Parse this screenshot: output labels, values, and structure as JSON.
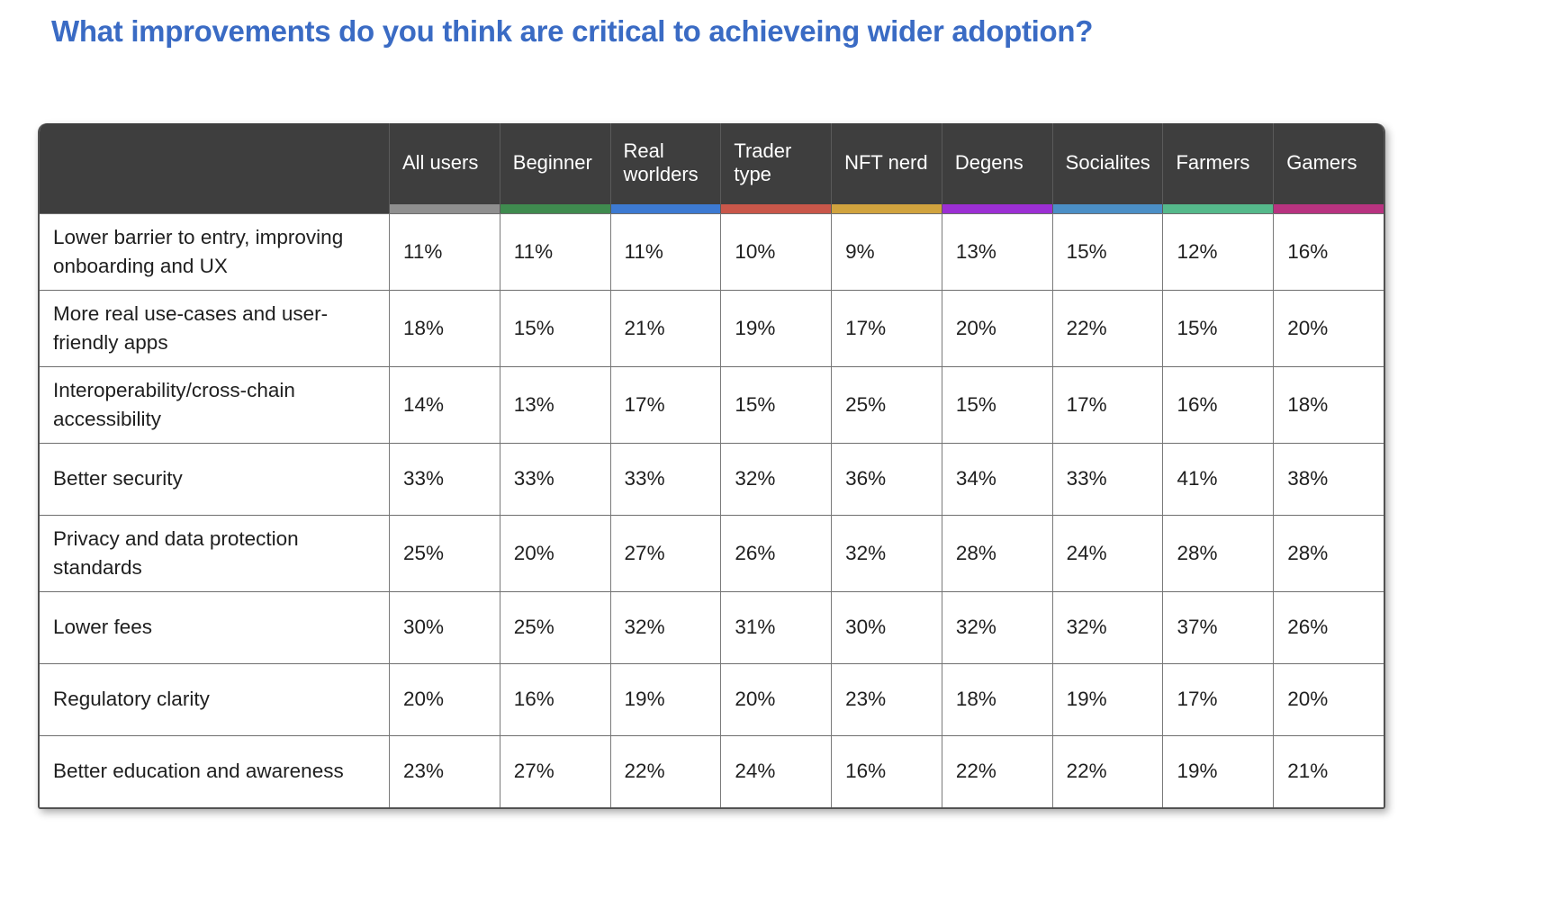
{
  "title": {
    "text": "What improvements do you think are critical to achieveing wider adoption?",
    "color": "#3a6bc4"
  },
  "table": {
    "columns": [
      {
        "label": "All users",
        "color": "#8f8f8f"
      },
      {
        "label": "Beginner",
        "color": "#3f8b4f"
      },
      {
        "label": "Real worlders",
        "color": "#3d7ad2"
      },
      {
        "label": "Trader type",
        "color": "#c9574a"
      },
      {
        "label": "NFT nerd",
        "color": "#d1a33e"
      },
      {
        "label": "Degens",
        "color": "#9c2fd4"
      },
      {
        "label": "Socialites",
        "color": "#4b8fc6"
      },
      {
        "label": "Farmers",
        "color": "#55b98b"
      },
      {
        "label": "Gamers",
        "color": "#b83380"
      }
    ],
    "rows": [
      {
        "label": "Lower barrier to entry, improving onboarding and UX",
        "values": [
          "11%",
          "11%",
          "11%",
          "10%",
          "9%",
          "13%",
          "15%",
          "12%",
          "16%"
        ]
      },
      {
        "label": "More real use-cases and user-friendly apps",
        "values": [
          "18%",
          "15%",
          "21%",
          "19%",
          "17%",
          "20%",
          "22%",
          "15%",
          "20%"
        ]
      },
      {
        "label": "Interoperability/cross-chain accessibility",
        "values": [
          "14%",
          "13%",
          "17%",
          "15%",
          "25%",
          "15%",
          "17%",
          "16%",
          "18%"
        ]
      },
      {
        "label": "Better security",
        "values": [
          "33%",
          "33%",
          "33%",
          "32%",
          "36%",
          "34%",
          "33%",
          "41%",
          "38%"
        ]
      },
      {
        "label": "Privacy and data protection standards",
        "values": [
          "25%",
          "20%",
          "27%",
          "26%",
          "32%",
          "28%",
          "24%",
          "28%",
          "28%"
        ]
      },
      {
        "label": "Lower fees",
        "values": [
          "30%",
          "25%",
          "32%",
          "31%",
          "30%",
          "32%",
          "32%",
          "37%",
          "26%"
        ]
      },
      {
        "label": "Regulatory clarity",
        "values": [
          "20%",
          "16%",
          "19%",
          "20%",
          "23%",
          "18%",
          "19%",
          "17%",
          "20%"
        ]
      },
      {
        "label": "Better education and awareness",
        "values": [
          "23%",
          "27%",
          "22%",
          "24%",
          "16%",
          "22%",
          "22%",
          "19%",
          "21%"
        ]
      }
    ]
  },
  "chart_data": {
    "type": "table",
    "title": "What improvements do you think are critical to achieveing wider adoption?",
    "categories": [
      "All users",
      "Beginner",
      "Real worlders",
      "Trader type",
      "NFT nerd",
      "Degens",
      "Socialites",
      "Farmers",
      "Gamers"
    ],
    "value_unit": "%",
    "series": [
      {
        "name": "Lower barrier to entry, improving onboarding and UX",
        "values": [
          11,
          11,
          11,
          10,
          9,
          13,
          15,
          12,
          16
        ]
      },
      {
        "name": "More real use-cases and user-friendly apps",
        "values": [
          18,
          15,
          21,
          19,
          17,
          20,
          22,
          15,
          20
        ]
      },
      {
        "name": "Interoperability/cross-chain accessibility",
        "values": [
          14,
          13,
          17,
          15,
          25,
          15,
          17,
          16,
          18
        ]
      },
      {
        "name": "Better security",
        "values": [
          33,
          33,
          33,
          32,
          36,
          34,
          33,
          41,
          38
        ]
      },
      {
        "name": "Privacy and data protection standards",
        "values": [
          25,
          20,
          27,
          26,
          32,
          28,
          24,
          28,
          28
        ]
      },
      {
        "name": "Lower fees",
        "values": [
          30,
          25,
          32,
          31,
          30,
          32,
          32,
          37,
          26
        ]
      },
      {
        "name": "Regulatory clarity",
        "values": [
          20,
          16,
          19,
          20,
          23,
          18,
          19,
          17,
          20
        ]
      },
      {
        "name": "Better education and awareness",
        "values": [
          23,
          27,
          22,
          24,
          16,
          22,
          22,
          19,
          21
        ]
      }
    ],
    "column_colors": [
      "#8f8f8f",
      "#3f8b4f",
      "#3d7ad2",
      "#c9574a",
      "#d1a33e",
      "#9c2fd4",
      "#4b8fc6",
      "#55b98b",
      "#b83380"
    ]
  }
}
